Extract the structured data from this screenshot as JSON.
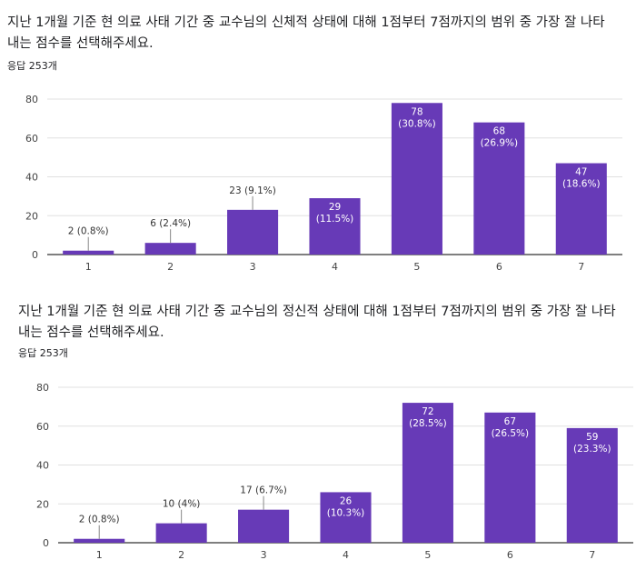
{
  "colors": {
    "bar": "#673ab7",
    "grid": "#e0e0e0",
    "axis": "#333333",
    "leader": "#888888"
  },
  "chart_data": [
    {
      "type": "bar",
      "title": "지난 1개월 기준 현 의료 사태 기간 중 교수님의 신체적 상태에 대해 1점부터 7점까지의 범위 중 가장 잘 나타내는 점수를 선택해주세요.",
      "subtitle": "응답 253개",
      "categories": [
        "1",
        "2",
        "3",
        "4",
        "5",
        "6",
        "7"
      ],
      "values": [
        2,
        6,
        23,
        29,
        78,
        68,
        47
      ],
      "data_labels": [
        "2 (0.8%)",
        "6 (2.4%)",
        "23 (9.1%)",
        "29",
        "78",
        "68",
        "47"
      ],
      "data_labels_pct": [
        "",
        "",
        "",
        "(11.5%)",
        "(30.8%)",
        "(26.9%)",
        "(18.6%)"
      ],
      "y_ticks": [
        "0",
        "20",
        "40",
        "60",
        "80"
      ],
      "ylim": [
        0,
        80
      ],
      "grid": true,
      "legend": "none"
    },
    {
      "type": "bar",
      "title": "지난 1개월 기준 현 의료 사태 기간 중 교수님의 정신적 상태에 대해 1점부터 7점까지의 범위 중 가장 잘 나타내는 점수를 선택해주세요.",
      "subtitle": "응답 253개",
      "categories": [
        "1",
        "2",
        "3",
        "4",
        "5",
        "6",
        "7"
      ],
      "values": [
        2,
        10,
        17,
        26,
        72,
        67,
        59
      ],
      "data_labels": [
        "2 (0.8%)",
        "10 (4%)",
        "17 (6.7%)",
        "26",
        "72",
        "67",
        "59"
      ],
      "data_labels_pct": [
        "",
        "",
        "",
        "(10.3%)",
        "(28.5%)",
        "(26.5%)",
        "(23.3%)"
      ],
      "y_ticks": [
        "0",
        "20",
        "40",
        "60",
        "80"
      ],
      "ylim": [
        0,
        80
      ],
      "grid": true,
      "legend": "none"
    }
  ]
}
